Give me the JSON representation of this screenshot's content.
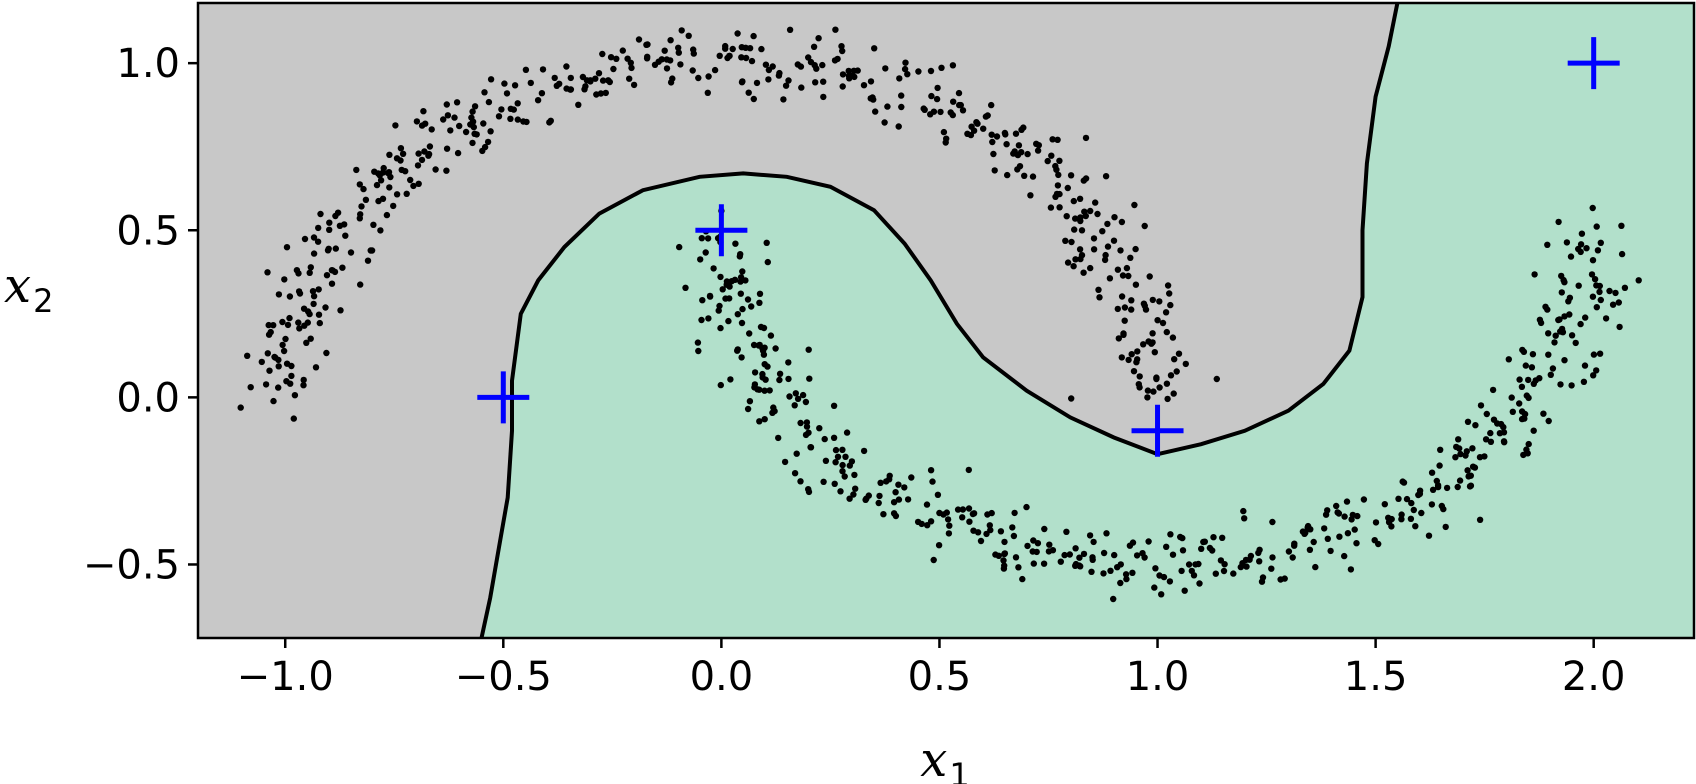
{
  "chart_data": {
    "type": "scatter",
    "title": "",
    "xlabel": "x",
    "xlabel_sub": "1",
    "ylabel": "x",
    "ylabel_sub": "2",
    "xlim": [
      -1.2,
      2.23
    ],
    "ylim": [
      -0.72,
      1.18
    ],
    "xticks": [
      -1.0,
      -0.5,
      0.0,
      0.5,
      1.0,
      1.5,
      2.0
    ],
    "xtick_labels": [
      "−1.0",
      "−0.5",
      "0.0",
      "0.5",
      "1.0",
      "1.5",
      "2.0"
    ],
    "yticks": [
      -0.5,
      0.0,
      0.5,
      1.0
    ],
    "ytick_labels": [
      "−0.5",
      "0.0",
      "0.5",
      "1.0"
    ],
    "grid": false,
    "legend": "none",
    "colors": {
      "region_a": "#c8c8c8",
      "region_b": "#b2e0cb",
      "boundary": "#000000",
      "points": "#000000",
      "landmarks": "#0000ff"
    },
    "landmarks": [
      {
        "x": -0.5,
        "y": 0.0
      },
      {
        "x": 0.0,
        "y": 0.5
      },
      {
        "x": 1.0,
        "y": -0.1
      },
      {
        "x": 2.0,
        "y": 1.0
      }
    ],
    "decision_boundary_left": [
      [
        -0.55,
        -0.72
      ],
      [
        -0.53,
        -0.6
      ],
      [
        -0.51,
        -0.45
      ],
      [
        -0.49,
        -0.3
      ],
      [
        -0.48,
        -0.1
      ],
      [
        -0.48,
        0.05
      ],
      [
        -0.47,
        0.15
      ],
      [
        -0.46,
        0.25
      ],
      [
        -0.42,
        0.35
      ],
      [
        -0.36,
        0.45
      ],
      [
        -0.28,
        0.55
      ],
      [
        -0.18,
        0.62
      ],
      [
        -0.05,
        0.66
      ],
      [
        0.05,
        0.67
      ],
      [
        0.15,
        0.66
      ],
      [
        0.25,
        0.63
      ],
      [
        0.35,
        0.56
      ],
      [
        0.42,
        0.46
      ],
      [
        0.48,
        0.35
      ],
      [
        0.54,
        0.22
      ],
      [
        0.6,
        0.12
      ],
      [
        0.7,
        0.02
      ],
      [
        0.8,
        -0.06
      ],
      [
        0.9,
        -0.12
      ],
      [
        1.0,
        -0.17
      ],
      [
        1.1,
        -0.14
      ],
      [
        1.2,
        -0.1
      ],
      [
        1.3,
        -0.04
      ],
      [
        1.38,
        0.04
      ],
      [
        1.44,
        0.14
      ],
      [
        1.47,
        0.3
      ],
      [
        1.47,
        0.5
      ],
      [
        1.48,
        0.7
      ],
      [
        1.5,
        0.9
      ],
      [
        1.53,
        1.05
      ],
      [
        1.55,
        1.18
      ]
    ],
    "moon_upper": {
      "center": [
        0.0,
        0.0
      ],
      "radius": 1.0,
      "angle_deg": [
        0,
        180
      ],
      "noise": 0.05,
      "count": 500
    },
    "moon_lower": {
      "center": [
        1.0,
        0.5
      ],
      "radius": 1.0,
      "angle_deg": [
        180,
        360
      ],
      "noise": 0.05,
      "count": 500
    }
  }
}
